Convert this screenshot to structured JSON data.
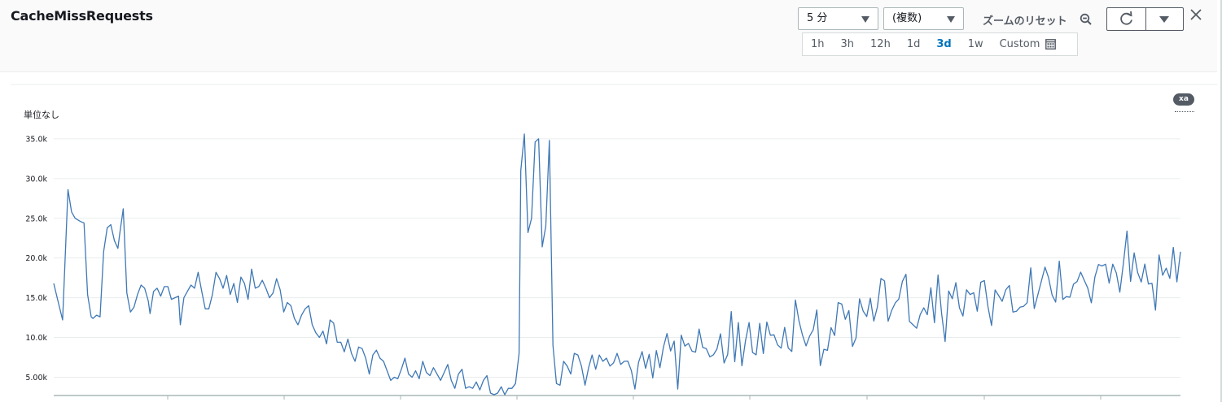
{
  "widget": {
    "title": "CacheMissRequests"
  },
  "controls": {
    "period": {
      "value": "5 分"
    },
    "statistic": {
      "value": "(複数)"
    },
    "zoom_reset_label": "ズームのリセット",
    "time_ranges": [
      "1h",
      "3h",
      "12h",
      "1d",
      "3d",
      "1w"
    ],
    "active_range": "3d",
    "custom_label": "Custom"
  },
  "legend": {
    "badge": "xa"
  },
  "colors": {
    "series": "#3f78b5",
    "grid": "#eaeded",
    "active": "#0073bb"
  },
  "chart_data": {
    "type": "line",
    "title": "CacheMissRequests",
    "ylabel": "単位なし",
    "yticks": [
      "5.00k",
      "10.0k",
      "15.0k",
      "20.0k",
      "25.0k",
      "30.0k",
      "35.0k"
    ],
    "ytick_values": [
      5000,
      10000,
      15000,
      20000,
      25000,
      30000,
      35000
    ],
    "ylim": [
      2800,
      35500
    ],
    "x_count": 320,
    "series": [
      {
        "name": "xa",
        "anchors": [
          [
            0,
            16800
          ],
          [
            3,
            14000
          ],
          [
            5,
            12200
          ],
          [
            8,
            28600
          ],
          [
            10,
            25800
          ],
          [
            12,
            25000
          ],
          [
            15,
            24600
          ],
          [
            17,
            24400
          ],
          [
            19,
            15400
          ],
          [
            21,
            12600
          ],
          [
            22,
            12400
          ],
          [
            24,
            12800
          ],
          [
            26,
            12600
          ],
          [
            28,
            20800
          ],
          [
            30,
            23800
          ],
          [
            32,
            24200
          ],
          [
            34,
            22200
          ],
          [
            36,
            21200
          ],
          [
            37,
            23000
          ],
          [
            39,
            26200
          ],
          [
            41,
            15600
          ],
          [
            43,
            13200
          ],
          [
            45,
            13800
          ],
          [
            47,
            15400
          ],
          [
            49,
            16600
          ],
          [
            51,
            16200
          ],
          [
            53,
            14600
          ],
          [
            54,
            13000
          ],
          [
            56,
            15800
          ],
          [
            58,
            16200
          ],
          [
            60,
            15200
          ],
          [
            62,
            16400
          ],
          [
            64,
            16400
          ],
          [
            66,
            14800
          ],
          [
            68,
            15000
          ],
          [
            70,
            15200
          ],
          [
            71,
            11600
          ],
          [
            73,
            15000
          ],
          [
            75,
            15800
          ],
          [
            77,
            16600
          ],
          [
            79,
            16200
          ],
          [
            81,
            18200
          ],
          [
            83,
            15800
          ],
          [
            85,
            13600
          ],
          [
            87,
            13600
          ],
          [
            89,
            15400
          ],
          [
            91,
            18200
          ],
          [
            93,
            17400
          ],
          [
            95,
            16200
          ],
          [
            97,
            17800
          ],
          [
            99,
            15400
          ],
          [
            101,
            16800
          ],
          [
            103,
            14400
          ],
          [
            105,
            17600
          ],
          [
            107,
            16800
          ],
          [
            109,
            14800
          ],
          [
            111,
            18600
          ],
          [
            113,
            16200
          ],
          [
            115,
            16400
          ],
          [
            117,
            17200
          ],
          [
            119,
            16200
          ],
          [
            121,
            15000
          ],
          [
            123,
            15600
          ],
          [
            125,
            17400
          ],
          [
            127,
            16000
          ],
          [
            129,
            13200
          ],
          [
            131,
            14400
          ],
          [
            133,
            14000
          ],
          [
            135,
            12400
          ],
          [
            137,
            11600
          ],
          [
            139,
            12800
          ],
          [
            141,
            13600
          ],
          [
            143,
            14000
          ],
          [
            145,
            11600
          ],
          [
            147,
            10600
          ],
          [
            149,
            10000
          ],
          [
            151,
            10800
          ],
          [
            153,
            9200
          ],
          [
            155,
            12200
          ],
          [
            157,
            11800
          ],
          [
            159,
            9400
          ],
          [
            161,
            9400
          ],
          [
            163,
            8200
          ],
          [
            165,
            9800
          ],
          [
            167,
            8000
          ],
          [
            169,
            7000
          ],
          [
            171,
            8800
          ],
          [
            173,
            8600
          ],
          [
            175,
            7400
          ],
          [
            177,
            5400
          ],
          [
            179,
            7800
          ],
          [
            181,
            8400
          ],
          [
            183,
            7400
          ],
          [
            185,
            7000
          ],
          [
            187,
            5800
          ],
          [
            189,
            4600
          ],
          [
            191,
            5000
          ],
          [
            193,
            4800
          ],
          [
            195,
            6000
          ],
          [
            197,
            7400
          ],
          [
            199,
            5400
          ],
          [
            201,
            5000
          ],
          [
            203,
            5800
          ],
          [
            205,
            4800
          ],
          [
            207,
            7000
          ],
          [
            209,
            5600
          ],
          [
            211,
            5200
          ],
          [
            213,
            6200
          ],
          [
            215,
            5400
          ],
          [
            217,
            4600
          ],
          [
            219,
            5600
          ],
          [
            221,
            6600
          ],
          [
            223,
            4600
          ],
          [
            225,
            3600
          ],
          [
            227,
            5400
          ],
          [
            229,
            6000
          ],
          [
            231,
            3600
          ],
          [
            233,
            3800
          ],
          [
            235,
            3600
          ],
          [
            237,
            4400
          ],
          [
            239,
            3400
          ],
          [
            241,
            4600
          ],
          [
            243,
            5200
          ],
          [
            245,
            3000
          ],
          [
            247,
            2800
          ],
          [
            249,
            3000
          ],
          [
            251,
            3800
          ],
          [
            253,
            2800
          ],
          [
            255,
            3600
          ],
          [
            257,
            3600
          ],
          [
            259,
            4200
          ],
          [
            261,
            8000
          ],
          [
            262,
            31000
          ],
          [
            264,
            35600
          ],
          [
            266,
            23200
          ],
          [
            268,
            25000
          ],
          [
            270,
            34600
          ],
          [
            272,
            35000
          ],
          [
            274,
            21400
          ],
          [
            276,
            24000
          ],
          [
            278,
            34800
          ],
          [
            280,
            9000
          ],
          [
            282,
            4200
          ],
          [
            284,
            4000
          ],
          [
            286,
            7000
          ],
          [
            288,
            6400
          ],
          [
            290,
            5400
          ],
          [
            292,
            8000
          ],
          [
            294,
            7800
          ],
          [
            296,
            6400
          ],
          [
            298,
            4000
          ],
          [
            300,
            6200
          ],
          [
            302,
            7800
          ],
          [
            304,
            6000
          ],
          [
            306,
            7800
          ],
          [
            308,
            7000
          ],
          [
            310,
            7400
          ],
          [
            312,
            6400
          ],
          [
            314,
            6800
          ],
          [
            316,
            8000
          ],
          [
            318,
            6600
          ],
          [
            320,
            7000
          ]
        ]
      }
    ]
  }
}
